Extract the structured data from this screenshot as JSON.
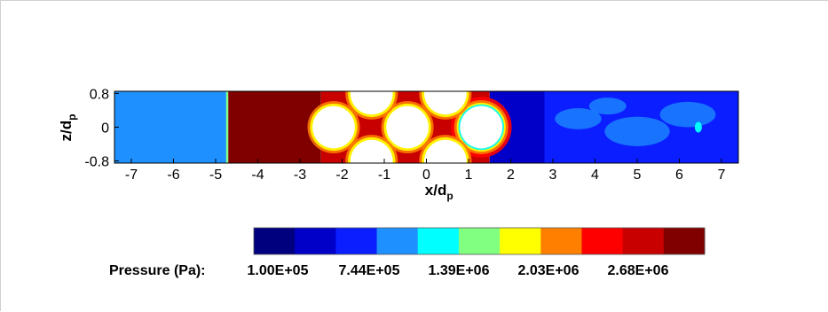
{
  "chart_data": {
    "type": "heatmap",
    "title": "",
    "xlabel": "x/d",
    "xlabel_sub": "p",
    "ylabel": "z/d",
    "ylabel_sub": "p",
    "xlim": [
      -7.4,
      7.4
    ],
    "ylim": [
      -0.85,
      0.85
    ],
    "x_ticks": [
      -7,
      -6,
      -5,
      -4,
      -3,
      -2,
      -1,
      0,
      1,
      2,
      3,
      4,
      5,
      6,
      7
    ],
    "y_ticks": [
      0.8,
      0,
      -0.8
    ],
    "y_tick_labels": [
      "0.8",
      "0",
      "-0.8"
    ],
    "colorbar": {
      "label": "Pressure (Pa):",
      "tick_labels": [
        "1.00E+05",
        "7.44E+05",
        "1.39E+06",
        "2.03E+06",
        "2.68E+06"
      ],
      "colors": [
        "#00007f",
        "#0000c8",
        "#0a1eff",
        "#1e90ff",
        "#00ffff",
        "#80ff80",
        "#ffff00",
        "#ff8000",
        "#ff0000",
        "#c80000",
        "#800000"
      ]
    },
    "regions": [
      {
        "x0": -7.4,
        "x1": -4.75,
        "level": 3
      },
      {
        "x0": -4.75,
        "x1": -4.7,
        "level": 5
      },
      {
        "x0": -4.7,
        "x1": -2.5,
        "level": 10
      },
      {
        "x0": -2.5,
        "x1": 1.5,
        "level": 9
      },
      {
        "x0": 1.5,
        "x1": 2.8,
        "level": 1
      },
      {
        "x0": 2.8,
        "x1": 7.4,
        "level": 2
      }
    ],
    "obstacles": [
      {
        "x": -2.2,
        "z": 0.0,
        "r": 0.5
      },
      {
        "x": -0.45,
        "z": 0.0,
        "r": 0.5
      },
      {
        "x": 1.3,
        "z": 0.0,
        "r": 0.5
      },
      {
        "x": -1.3,
        "z": 0.8,
        "r": 0.5
      },
      {
        "x": 0.45,
        "z": 0.8,
        "r": 0.5
      },
      {
        "x": -1.3,
        "z": -0.8,
        "r": 0.5
      },
      {
        "x": 0.45,
        "z": -0.8,
        "r": 0.5
      }
    ]
  }
}
